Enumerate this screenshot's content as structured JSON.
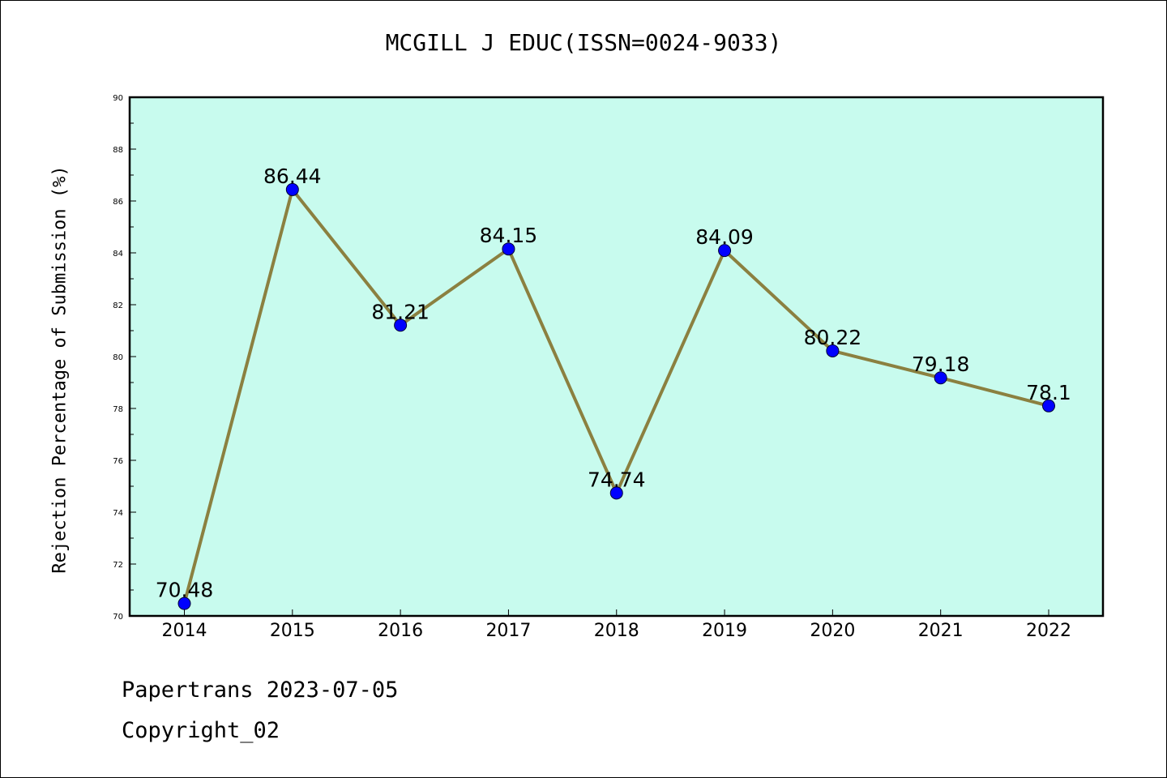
{
  "chart_data": {
    "type": "line",
    "title": "MCGILL J EDUC(ISSN=0024-9033)",
    "xlabel": "",
    "ylabel": "Rejection Percentage of Submission (%)",
    "categories": [
      "2014",
      "2015",
      "2016",
      "2017",
      "2018",
      "2019",
      "2020",
      "2021",
      "2022"
    ],
    "values": [
      70.48,
      86.44,
      81.21,
      84.15,
      74.74,
      84.09,
      80.22,
      79.18,
      78.1
    ],
    "data_labels": [
      "70.48",
      "86.44",
      "81.21",
      "84.15",
      "74.74",
      "84.09",
      "80.22",
      "79.18",
      "78.1"
    ],
    "ylim": [
      70,
      90
    ],
    "yticks": [
      "70",
      "72",
      "74",
      "76",
      "78",
      "80",
      "82",
      "84",
      "86",
      "88",
      "90"
    ],
    "grid": false,
    "legend": "none",
    "colors": {
      "plot_bg": "#c8fbee",
      "line": "#8b8040",
      "marker": "#0000ff"
    }
  },
  "footer": {
    "line1": "Papertrans 2023-07-05",
    "line2": "Copyright_02"
  }
}
